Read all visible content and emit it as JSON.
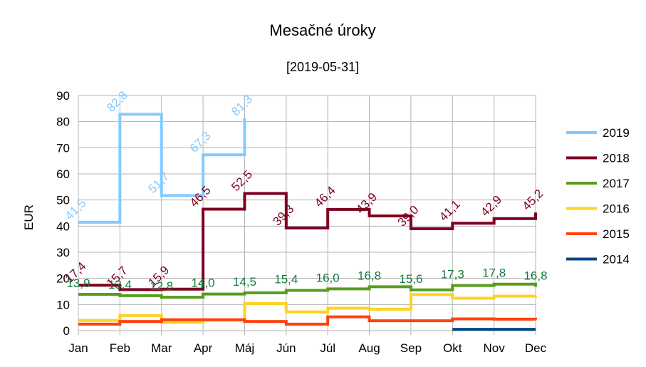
{
  "chart_data": {
    "type": "line",
    "step": "pre",
    "title": "Mesačné úroky",
    "subtitle": "[2019-05-31]",
    "ylabel": "EUR",
    "xlabel": "",
    "ylim": [
      0,
      90
    ],
    "yticks": [
      "0",
      "10",
      "20",
      "30",
      "40",
      "50",
      "60",
      "70",
      "80",
      "90"
    ],
    "categories": [
      "Jan",
      "Feb",
      "Mar",
      "Apr",
      "Máj",
      "Jún",
      "Júl",
      "Aug",
      "Sep",
      "Okt",
      "Nov",
      "Dec"
    ],
    "grid": true,
    "legend_position": "right",
    "series": [
      {
        "name": "2019",
        "color": "#83caff",
        "values": [
          41.5,
          82.8,
          51.7,
          67.3,
          81.3,
          null,
          null,
          null,
          null,
          null,
          null,
          null
        ],
        "labels": [
          "41,5",
          "82,8",
          "51,7",
          "67,3",
          "81,3"
        ]
      },
      {
        "name": "2018",
        "color": "#7e0021",
        "values": [
          17.4,
          15.7,
          15.9,
          46.5,
          52.5,
          39.3,
          46.4,
          43.9,
          39.0,
          41.1,
          42.9,
          45.2
        ],
        "labels": [
          "17,4",
          "15,7",
          "15,9",
          "46,5",
          "52,5",
          "39,3",
          "46,4",
          "43,9",
          "39,0",
          "41,1",
          "42,9",
          "45,2"
        ]
      },
      {
        "name": "2017",
        "color": "#579d1c",
        "values": [
          13.9,
          13.4,
          12.8,
          14.0,
          14.5,
          15.4,
          16.0,
          16.8,
          15.6,
          17.3,
          17.8,
          16.8
        ],
        "labels": [
          "13,9",
          "13,4",
          "12,8",
          "14,0",
          "14,5",
          "15,4",
          "16,0",
          "16,8",
          "15,6",
          "17,3",
          "17,8",
          "16,8"
        ],
        "label_color": "#127b3a"
      },
      {
        "name": "2016",
        "color": "#ffd320",
        "values": [
          3.9,
          5.8,
          3.2,
          4.0,
          10.4,
          7.2,
          8.6,
          8.2,
          13.8,
          12.4,
          13.2,
          13.3
        ]
      },
      {
        "name": "2015",
        "color": "#ff420e",
        "values": [
          2.5,
          3.5,
          4.2,
          4.2,
          3.5,
          2.5,
          5.3,
          3.8,
          3.8,
          4.5,
          4.4,
          4.2
        ]
      },
      {
        "name": "2014",
        "color": "#004586",
        "values": [
          null,
          null,
          null,
          null,
          null,
          null,
          null,
          null,
          null,
          0.5,
          0.5,
          0.5
        ]
      }
    ]
  }
}
